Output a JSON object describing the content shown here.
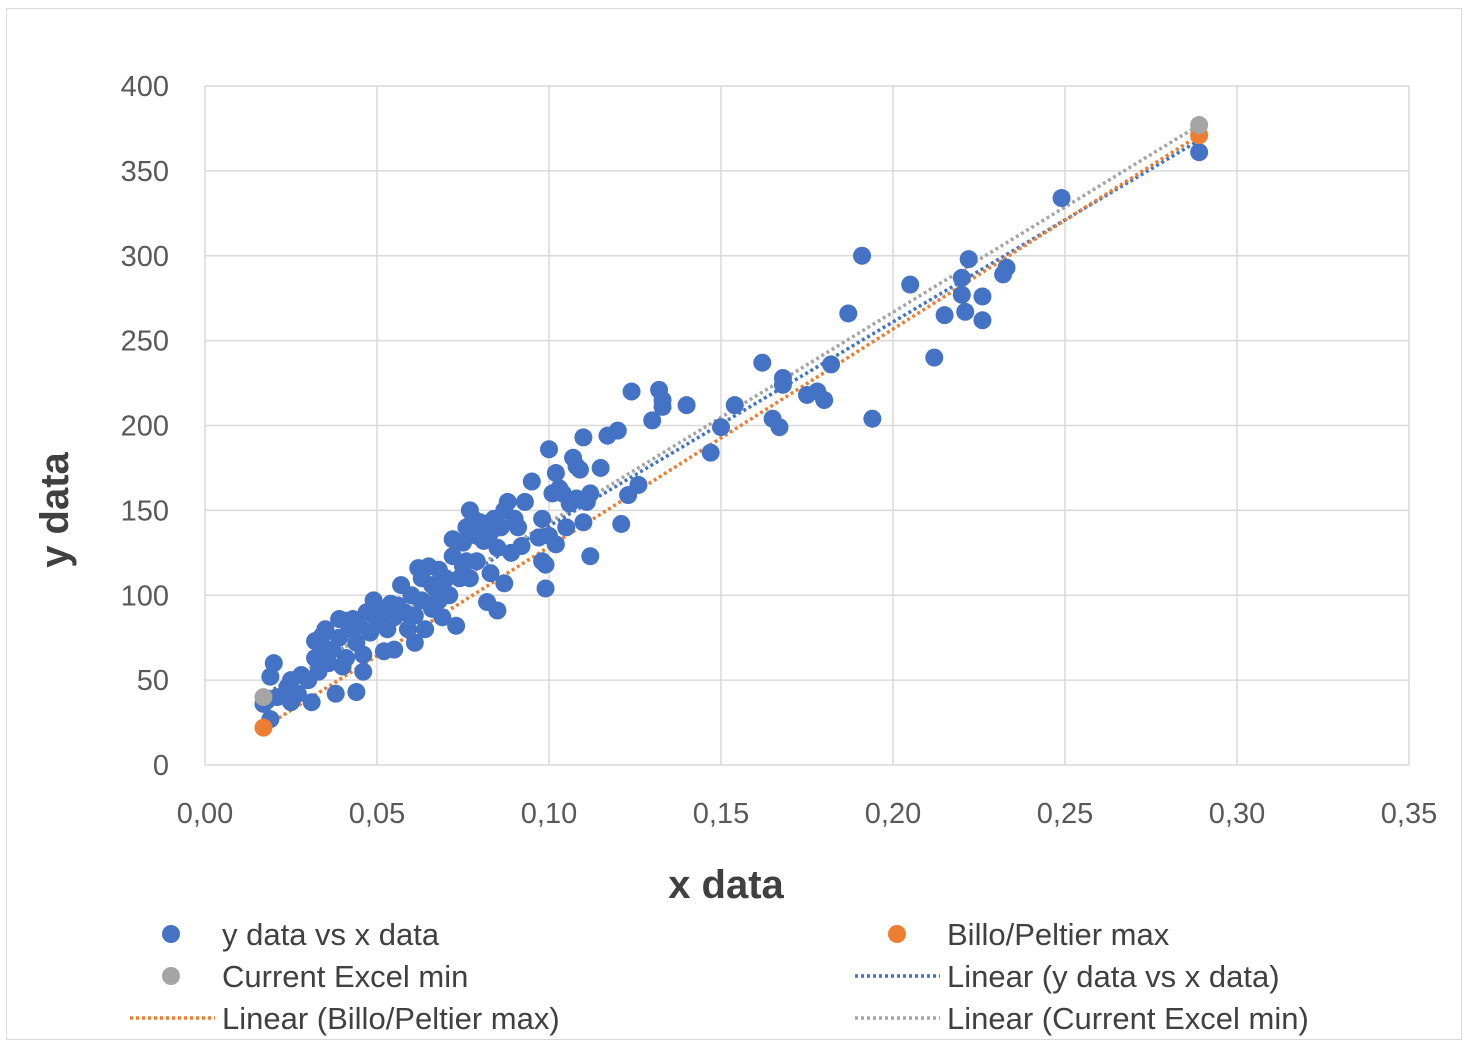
{
  "chart_data": {
    "type": "scatter",
    "xlabel": "x data",
    "ylabel": "y data",
    "xlim": [
      0,
      0.35
    ],
    "ylim": [
      0,
      400
    ],
    "x_ticks": [
      "0,00",
      "0,05",
      "0,10",
      "0,15",
      "0,20",
      "0,25",
      "0,30",
      "0,35"
    ],
    "y_ticks": [
      "0",
      "50",
      "100",
      "150",
      "200",
      "250",
      "300",
      "350",
      "400"
    ],
    "grid": true,
    "legend_position": "bottom",
    "series": [
      {
        "name": "y data vs x data",
        "color": "#4472C4",
        "points": [
          [
            0.017,
            36
          ],
          [
            0.018,
            38
          ],
          [
            0.019,
            27
          ],
          [
            0.019,
            52
          ],
          [
            0.02,
            60
          ],
          [
            0.021,
            40
          ],
          [
            0.024,
            46
          ],
          [
            0.025,
            37
          ],
          [
            0.025,
            50
          ],
          [
            0.027,
            42
          ],
          [
            0.028,
            53
          ],
          [
            0.03,
            50
          ],
          [
            0.031,
            37
          ],
          [
            0.032,
            63
          ],
          [
            0.032,
            73
          ],
          [
            0.033,
            55
          ],
          [
            0.034,
            66
          ],
          [
            0.034,
            76
          ],
          [
            0.035,
            80
          ],
          [
            0.036,
            60
          ],
          [
            0.037,
            68
          ],
          [
            0.038,
            42
          ],
          [
            0.039,
            75
          ],
          [
            0.039,
            86
          ],
          [
            0.04,
            58
          ],
          [
            0.041,
            63
          ],
          [
            0.041,
            85
          ],
          [
            0.042,
            80
          ],
          [
            0.043,
            86
          ],
          [
            0.044,
            43
          ],
          [
            0.044,
            72
          ],
          [
            0.045,
            82
          ],
          [
            0.046,
            55
          ],
          [
            0.046,
            65
          ],
          [
            0.047,
            90
          ],
          [
            0.048,
            78
          ],
          [
            0.049,
            97
          ],
          [
            0.05,
            85
          ],
          [
            0.051,
            92
          ],
          [
            0.052,
            67
          ],
          [
            0.053,
            80
          ],
          [
            0.054,
            95
          ],
          [
            0.055,
            68
          ],
          [
            0.055,
            87
          ],
          [
            0.056,
            94
          ],
          [
            0.057,
            106
          ],
          [
            0.058,
            90
          ],
          [
            0.059,
            80
          ],
          [
            0.06,
            100
          ],
          [
            0.061,
            72
          ],
          [
            0.061,
            88
          ],
          [
            0.062,
            116
          ],
          [
            0.063,
            97
          ],
          [
            0.063,
            110
          ],
          [
            0.064,
            80
          ],
          [
            0.065,
            117
          ],
          [
            0.066,
            92
          ],
          [
            0.066,
            106
          ],
          [
            0.067,
            104
          ],
          [
            0.068,
            97
          ],
          [
            0.068,
            115
          ],
          [
            0.069,
            87
          ],
          [
            0.07,
            110
          ],
          [
            0.071,
            100
          ],
          [
            0.072,
            123
          ],
          [
            0.072,
            133
          ],
          [
            0.073,
            82
          ],
          [
            0.074,
            110
          ],
          [
            0.075,
            131
          ],
          [
            0.075,
            117
          ],
          [
            0.076,
            140
          ],
          [
            0.076,
            120
          ],
          [
            0.077,
            150
          ],
          [
            0.077,
            110
          ],
          [
            0.078,
            145
          ],
          [
            0.079,
            135
          ],
          [
            0.079,
            120
          ],
          [
            0.08,
            143
          ],
          [
            0.081,
            132
          ],
          [
            0.082,
            96
          ],
          [
            0.082,
            140
          ],
          [
            0.083,
            113
          ],
          [
            0.083,
            137
          ],
          [
            0.084,
            145
          ],
          [
            0.085,
            91
          ],
          [
            0.085,
            128
          ],
          [
            0.086,
            140
          ],
          [
            0.087,
            107
          ],
          [
            0.087,
            150
          ],
          [
            0.088,
            155
          ],
          [
            0.089,
            125
          ],
          [
            0.09,
            145
          ],
          [
            0.091,
            140
          ],
          [
            0.092,
            129
          ],
          [
            0.093,
            155
          ],
          [
            0.095,
            167
          ],
          [
            0.097,
            134
          ],
          [
            0.098,
            145
          ],
          [
            0.098,
            120
          ],
          [
            0.099,
            118
          ],
          [
            0.099,
            104
          ],
          [
            0.1,
            186
          ],
          [
            0.1,
            135
          ],
          [
            0.101,
            160
          ],
          [
            0.102,
            172
          ],
          [
            0.102,
            130
          ],
          [
            0.103,
            163
          ],
          [
            0.104,
            160
          ],
          [
            0.105,
            140
          ],
          [
            0.106,
            154
          ],
          [
            0.107,
            181
          ],
          [
            0.108,
            176
          ],
          [
            0.108,
            157
          ],
          [
            0.109,
            174
          ],
          [
            0.11,
            143
          ],
          [
            0.11,
            193
          ],
          [
            0.111,
            155
          ],
          [
            0.112,
            123
          ],
          [
            0.112,
            160
          ],
          [
            0.115,
            175
          ],
          [
            0.117,
            194
          ],
          [
            0.12,
            197
          ],
          [
            0.121,
            142
          ],
          [
            0.123,
            159
          ],
          [
            0.124,
            220
          ],
          [
            0.126,
            165
          ],
          [
            0.13,
            203
          ],
          [
            0.132,
            221
          ],
          [
            0.133,
            211
          ],
          [
            0.133,
            215
          ],
          [
            0.14,
            212
          ],
          [
            0.147,
            184
          ],
          [
            0.15,
            199
          ],
          [
            0.154,
            212
          ],
          [
            0.162,
            237
          ],
          [
            0.165,
            204
          ],
          [
            0.167,
            199
          ],
          [
            0.168,
            228
          ],
          [
            0.168,
            224
          ],
          [
            0.175,
            218
          ],
          [
            0.178,
            220
          ],
          [
            0.18,
            215
          ],
          [
            0.182,
            236
          ],
          [
            0.187,
            266
          ],
          [
            0.191,
            300
          ],
          [
            0.194,
            204
          ],
          [
            0.205,
            283
          ],
          [
            0.212,
            240
          ],
          [
            0.215,
            265
          ],
          [
            0.22,
            277
          ],
          [
            0.22,
            287
          ],
          [
            0.221,
            267
          ],
          [
            0.222,
            298
          ],
          [
            0.226,
            262
          ],
          [
            0.226,
            276
          ],
          [
            0.232,
            289
          ],
          [
            0.233,
            293
          ],
          [
            0.249,
            334
          ],
          [
            0.289,
            361
          ]
        ],
        "trendline": {
          "name": "Linear (y data vs x data)",
          "from": [
            0.017,
            41
          ],
          "to": [
            0.289,
            368
          ]
        }
      },
      {
        "name": "Billo/Peltier max",
        "color": "#ED7D31",
        "points": [
          [
            0.017,
            22
          ],
          [
            0.289,
            371
          ]
        ],
        "trendline": {
          "name": "Linear (Billo/Peltier max)",
          "from": [
            0.017,
            22
          ],
          "to": [
            0.289,
            371
          ]
        }
      },
      {
        "name": "Current Excel min",
        "color": "#A5A5A5",
        "points": [
          [
            0.017,
            40
          ],
          [
            0.289,
            377
          ]
        ],
        "trendline": {
          "name": "Linear (Current Excel min)",
          "from": [
            0.017,
            40
          ],
          "to": [
            0.289,
            377
          ]
        }
      }
    ]
  },
  "legend": {
    "marker_items": [
      {
        "label": "y data vs x data",
        "color": "#4472C4"
      },
      {
        "label": "Billo/Peltier max",
        "color": "#ED7D31"
      },
      {
        "label": "Current Excel min",
        "color": "#A5A5A5"
      }
    ],
    "line_items": [
      {
        "label": "Linear (y data vs x data)",
        "color": "#4472C4"
      },
      {
        "label": "Linear (Billo/Peltier max)",
        "color": "#ED7D31"
      },
      {
        "label": "Linear (Current Excel min)",
        "color": "#A5A5A5"
      }
    ]
  }
}
